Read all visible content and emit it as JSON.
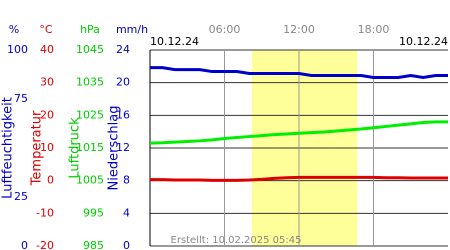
{
  "chart_data": {
    "type": "line",
    "date_left": "10.12.24",
    "date_right": "10.12.24",
    "created": "Erstellt: 10.02.2025 05:45",
    "xlim": [
      0,
      24
    ],
    "xticks": [
      {
        "value": 6,
        "label": "06:00"
      },
      {
        "value": 12,
        "label": "12:00"
      },
      {
        "value": 18,
        "label": "18:00"
      }
    ],
    "daylight": [
      8.2,
      16.7
    ],
    "grid": true,
    "axes": [
      {
        "unit": "%",
        "label": "Luftfeuchtigkeit",
        "color": "#0000cc",
        "ylim": [
          0,
          100
        ],
        "yticks": [
          100,
          75,
          25,
          0
        ]
      },
      {
        "unit": "°C",
        "label": "Temperatur",
        "color": "#dd0000",
        "ylim": [
          -20,
          40
        ],
        "yticks": [
          40,
          30,
          20,
          10,
          0,
          -10,
          -20
        ]
      },
      {
        "unit": "hPa",
        "label": "Luftdruck",
        "color": "#00cc00",
        "ylim": [
          985,
          1045
        ],
        "yticks": [
          1045,
          1035,
          1025,
          1015,
          1005,
          995,
          985
        ]
      },
      {
        "unit": "mm/h",
        "label": "Niederschlag",
        "color": "#0000cc",
        "ylim": [
          0,
          24
        ],
        "yticks": [
          24,
          20,
          16,
          12,
          8,
          4,
          0
        ]
      }
    ],
    "x": [
      0,
      1,
      2,
      3,
      4,
      5,
      6,
      7,
      8,
      9,
      10,
      11,
      12,
      13,
      14,
      15,
      16,
      17,
      18,
      19,
      20,
      21,
      22,
      23,
      24
    ],
    "series": [
      {
        "axis": 0,
        "color": "#0000cc",
        "values": [
          91,
          91,
          90,
          90,
          90,
          89,
          89,
          89,
          88,
          88,
          88,
          88,
          88,
          87,
          87,
          87,
          87,
          87,
          86,
          86,
          86,
          87,
          86,
          87,
          87
        ]
      },
      {
        "axis": 2,
        "color": "#00ee00",
        "values": [
          1016.5,
          1016.6,
          1016.8,
          1017,
          1017.2,
          1017.5,
          1017.9,
          1018.2,
          1018.5,
          1018.8,
          1019.1,
          1019.3,
          1019.5,
          1019.7,
          1019.9,
          1020.2,
          1020.5,
          1020.8,
          1021.2,
          1021.6,
          1022,
          1022.4,
          1022.8,
          1023,
          1023
        ]
      },
      {
        "axis": 1,
        "color": "#dd0000",
        "values": [
          0.3,
          0.3,
          0.2,
          0.2,
          0.2,
          0.1,
          0.1,
          0.1,
          0.2,
          0.4,
          0.7,
          0.9,
          1.0,
          1.0,
          1.0,
          1.0,
          1.0,
          1.0,
          1.0,
          0.9,
          0.9,
          0.8,
          0.8,
          0.8,
          0.8
        ]
      }
    ]
  }
}
